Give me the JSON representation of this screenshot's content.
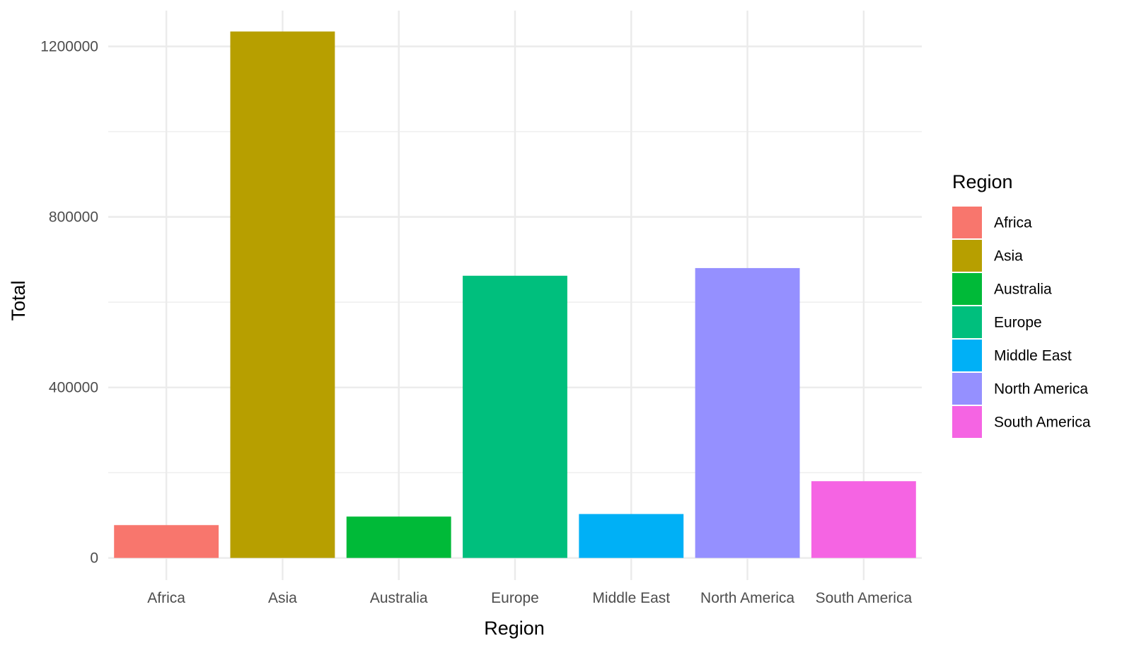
{
  "chart_data": {
    "type": "bar",
    "categories": [
      "Africa",
      "Asia",
      "Australia",
      "Europe",
      "Middle East",
      "North America",
      "South America"
    ],
    "values": [
      77000,
      1235000,
      97000,
      662000,
      103000,
      680000,
      180000
    ],
    "colors": [
      "#F8766D",
      "#B79F00",
      "#00BA38",
      "#00BF7D",
      "#00B0F6",
      "#9590FF",
      "#F564E3"
    ],
    "xlabel": "Region",
    "ylabel": "Total",
    "ylim": [
      -52000,
      1284000
    ],
    "yticks": [
      0,
      400000,
      800000,
      1200000
    ],
    "ytick_labels": [
      "0",
      "400000",
      "800000",
      "1200000"
    ],
    "grid": true,
    "legend": {
      "title": "Region",
      "position": "right",
      "entries": [
        "Africa",
        "Asia",
        "Australia",
        "Europe",
        "Middle East",
        "North America",
        "South America"
      ]
    }
  }
}
